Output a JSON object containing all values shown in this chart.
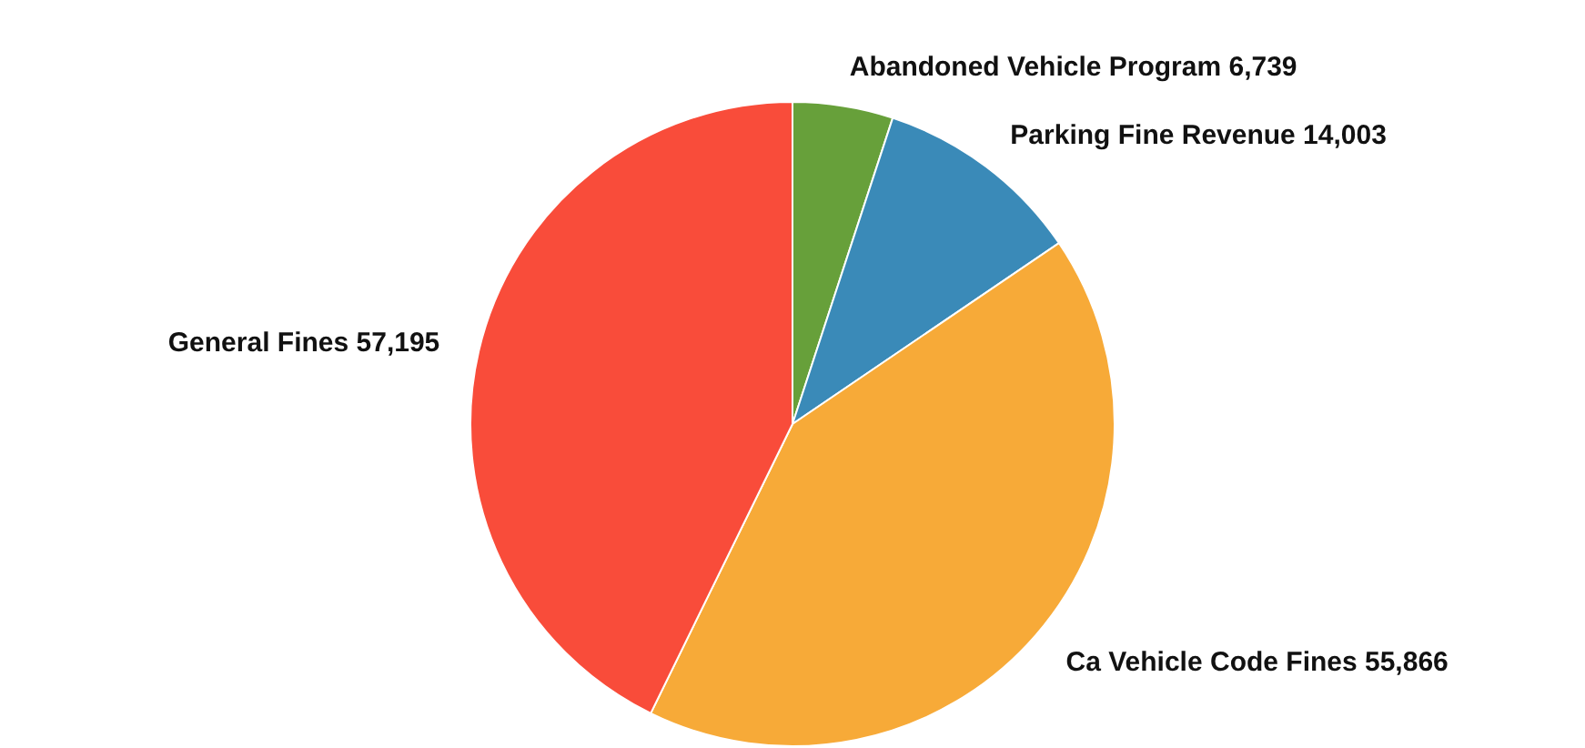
{
  "chart_data": {
    "type": "pie",
    "categories": [
      "Abandoned Vehicle Program",
      "Parking Fine Revenue",
      "Ca Vehicle Code Fines",
      "General Fines"
    ],
    "values": [
      6739,
      14003,
      55866,
      57195
    ],
    "colors": [
      "#67a03a",
      "#3a8ab8",
      "#f7aa38",
      "#f94c3a"
    ],
    "value_labels": [
      "6,739",
      "14,003",
      "55,866",
      "57,195"
    ]
  }
}
